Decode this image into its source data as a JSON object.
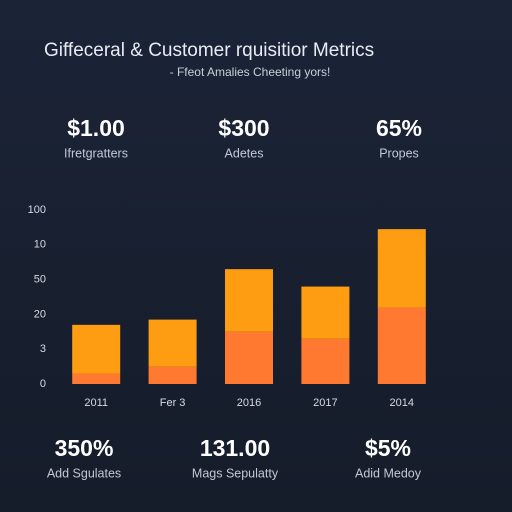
{
  "header": {
    "title": "Giffeceral & Customer rquisitior Metrics",
    "subtitle": "- Ffeot Amalies Cheeting yors!"
  },
  "kpis_top": [
    {
      "value": "$1.00",
      "label": "Ifretgratters"
    },
    {
      "value": "$300",
      "label": "Adetes"
    },
    {
      "value": "65%",
      "label": "Propes"
    }
  ],
  "chart_data": {
    "type": "bar",
    "stacked": true,
    "categories": [
      "2011",
      "Fer 3",
      "2016",
      "2017",
      "2014"
    ],
    "series": [
      {
        "color": "#ff7a30",
        "values": [
          6,
          10,
          30,
          26,
          44
        ]
      },
      {
        "color": "#ff9d12",
        "values": [
          28,
          27,
          36,
          30,
          45
        ]
      }
    ],
    "ylim": [
      0,
      100
    ],
    "yticks": [
      0,
      {
        "value": 20,
        "label": "3"
      },
      {
        "value": 40,
        "label": "20"
      },
      {
        "value": 60,
        "label": "50"
      },
      {
        "value": 80,
        "label": "10"
      },
      100
    ]
  },
  "kpis_bottom": [
    {
      "value": "350%",
      "label": "Add Sgulates"
    },
    {
      "value": "131.00",
      "label": "Mags Sepulatty"
    },
    {
      "value": "$5%",
      "label": "Adid Medoy"
    }
  ]
}
